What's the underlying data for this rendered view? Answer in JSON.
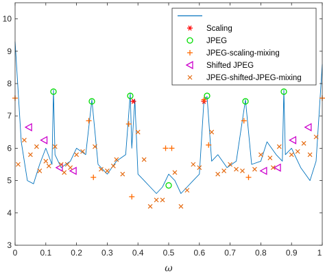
{
  "chart_data": {
    "type": "line",
    "title": "",
    "xlabel": "ω",
    "ylabel": "",
    "xlim": [
      0,
      1
    ],
    "ylim": [
      3,
      10.5
    ],
    "x_ticks": [
      "0",
      "0.1",
      "0.2",
      "0.3",
      "0.4",
      "0.5",
      "0.6",
      "0.7",
      "0.8",
      "0.9",
      "1"
    ],
    "y_ticks": [
      "3",
      "4",
      "5",
      "6",
      "7",
      "8",
      "9",
      "10"
    ],
    "grid": false,
    "legend_position": "top-right",
    "colors": {
      "spectrum": "#0072bd",
      "scaling": "#ff0000",
      "jpeg": "#00dd00",
      "jpeg_scaling_mixing": "#ff6a00",
      "shifted_jpeg": "#cc00cc",
      "jpeg_shifted_jpeg_mixing": "#e46a10"
    },
    "series": [
      {
        "name": "",
        "kind": "line",
        "color": "#0072bd",
        "x": [
          0,
          0.02,
          0.04,
          0.06,
          0.08,
          0.1,
          0.12,
          0.125,
          0.13,
          0.15,
          0.18,
          0.2,
          0.23,
          0.25,
          0.27,
          0.3,
          0.33,
          0.36,
          0.375,
          0.38,
          0.39,
          0.4,
          0.42,
          0.44,
          0.46,
          0.48,
          0.5,
          0.52,
          0.54,
          0.56,
          0.58,
          0.6,
          0.615,
          0.625,
          0.64,
          0.66,
          0.69,
          0.72,
          0.75,
          0.77,
          0.8,
          0.82,
          0.85,
          0.87,
          0.875,
          0.88,
          0.9,
          0.93,
          0.96,
          0.98,
          1.0
        ],
        "y": [
          9.3,
          6.2,
          5.0,
          4.9,
          5.5,
          6.0,
          5.5,
          7.8,
          5.8,
          5.4,
          5.6,
          6.0,
          5.8,
          7.5,
          5.5,
          5.2,
          5.6,
          5.8,
          7.7,
          6.0,
          7.5,
          5.2,
          5.0,
          4.8,
          4.6,
          4.8,
          5.2,
          5.0,
          4.6,
          4.8,
          5.0,
          5.2,
          7.5,
          7.6,
          5.6,
          5.8,
          5.4,
          5.6,
          7.5,
          5.5,
          5.6,
          6.2,
          5.8,
          5.6,
          7.8,
          5.8,
          6.0,
          5.4,
          5.0,
          5.6,
          8.6
        ]
      },
      {
        "name": "Scaling",
        "kind": "marker",
        "marker": "star",
        "color": "#ff0000",
        "x": [
          0.385,
          0.615
        ],
        "y": [
          7.45,
          7.45
        ]
      },
      {
        "name": "JPEG",
        "kind": "marker",
        "marker": "circle",
        "color": "#00dd00",
        "x": [
          0.125,
          0.25,
          0.375,
          0.5,
          0.625,
          0.75,
          0.875
        ],
        "y": [
          7.75,
          7.45,
          7.62,
          4.85,
          7.62,
          7.45,
          7.75
        ]
      },
      {
        "name": "JPEG-scaling-mixing",
        "kind": "marker",
        "marker": "plus",
        "color": "#ff6a00",
        "x": [
          0.0,
          0.24,
          0.255,
          0.37,
          0.38,
          0.49,
          0.51,
          0.615,
          0.63,
          0.745,
          0.76,
          1.0
        ],
        "y": [
          7.55,
          6.85,
          5.1,
          6.75,
          4.5,
          6.0,
          6.0,
          7.5,
          6.1,
          6.85,
          5.1,
          7.55
        ]
      },
      {
        "name": "Shifted JPEG",
        "kind": "marker",
        "marker": "triangle-left",
        "color": "#cc00cc",
        "x": [
          0.045,
          0.095,
          0.145,
          0.19,
          0.81,
          0.855,
          0.905,
          0.955
        ],
        "y": [
          6.65,
          6.25,
          5.4,
          5.3,
          5.3,
          5.4,
          6.25,
          6.65
        ]
      },
      {
        "name": "JPEG-shifted-JPEG-mixing",
        "kind": "marker",
        "marker": "x",
        "color": "#e46a10",
        "x": [
          0.01,
          0.03,
          0.05,
          0.07,
          0.08,
          0.1,
          0.11,
          0.13,
          0.15,
          0.16,
          0.17,
          0.18,
          0.2,
          0.22,
          0.26,
          0.28,
          0.3,
          0.32,
          0.33,
          0.35,
          0.4,
          0.42,
          0.44,
          0.46,
          0.48,
          0.52,
          0.54,
          0.56,
          0.58,
          0.6,
          0.64,
          0.66,
          0.68,
          0.7,
          0.72,
          0.74,
          0.78,
          0.8,
          0.83,
          0.84,
          0.86,
          0.9,
          0.92,
          0.94,
          0.96,
          0.98
        ],
        "y": [
          5.5,
          6.25,
          5.8,
          6.05,
          5.3,
          5.6,
          5.45,
          6.05,
          5.5,
          5.25,
          5.5,
          5.4,
          5.8,
          5.9,
          6.05,
          5.35,
          5.3,
          5.45,
          5.65,
          5.2,
          6.5,
          5.65,
          4.2,
          4.4,
          4.4,
          5.25,
          4.2,
          4.7,
          5.5,
          5.4,
          6.5,
          5.2,
          5.3,
          5.5,
          5.35,
          5.3,
          5.35,
          5.8,
          5.7,
          5.4,
          6.05,
          5.8,
          5.9,
          6.15,
          5.8,
          6.35
        ]
      }
    ]
  }
}
